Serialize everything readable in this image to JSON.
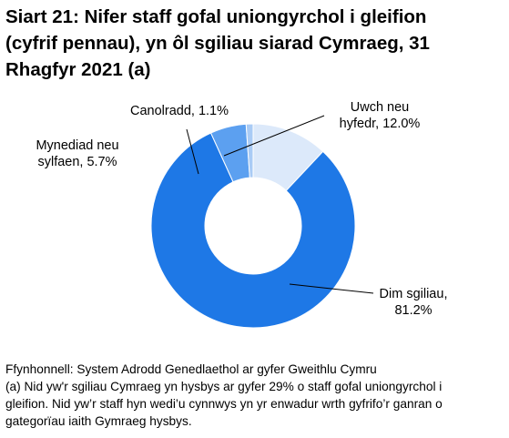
{
  "title_lines": [
    "Siart 21: Nifer staff gofal uniongyrchol i gleifion",
    "(cyfrif pennau), yn ôl sgiliau siarad Cymraeg, 31",
    "Rhagfyr 2021 (a)"
  ],
  "chart_data": {
    "type": "pie",
    "donut": true,
    "title": "Siart 21: Nifer staff gofal uniongyrchol i gleifion (cyfrif pennau), yn ôl sgiliau siarad Cymraeg, 31 Rhagfyr 2021 (a)",
    "categories": [
      "Uwch neu hyfedr",
      "Dim sgiliau",
      "Mynediad neu sylfaen",
      "Canolradd"
    ],
    "values": [
      12.0,
      81.2,
      5.7,
      1.1
    ],
    "unit": "%",
    "colors": [
      "#dce9fa",
      "#1e78e6",
      "#5ca0f0",
      "#a9cbf5"
    ],
    "labels": [
      [
        "Uwch neu",
        "hyfedr, 12.0%"
      ],
      [
        "Dim sgiliau,",
        "81.2%"
      ],
      [
        "Mynediad neu",
        "sylfaen, 5.7%"
      ],
      [
        "Canolradd, 1.1%"
      ]
    ]
  },
  "notes": [
    "Ffynhonnell: System Adrodd Genedlaethol ar gyfer Gweithlu Cymru",
    "(a) Nid yw'r sgiliau Cymraeg yn hysbys ar gyfer 29% o staff gofal uniongyrchol i",
    "gleifion. Nid yw’r staff hyn wedi’u cynnwys yn yr enwadur wrth gyfrifo’r ganran o",
    "gategorïau iaith Gymraeg hysbys."
  ]
}
